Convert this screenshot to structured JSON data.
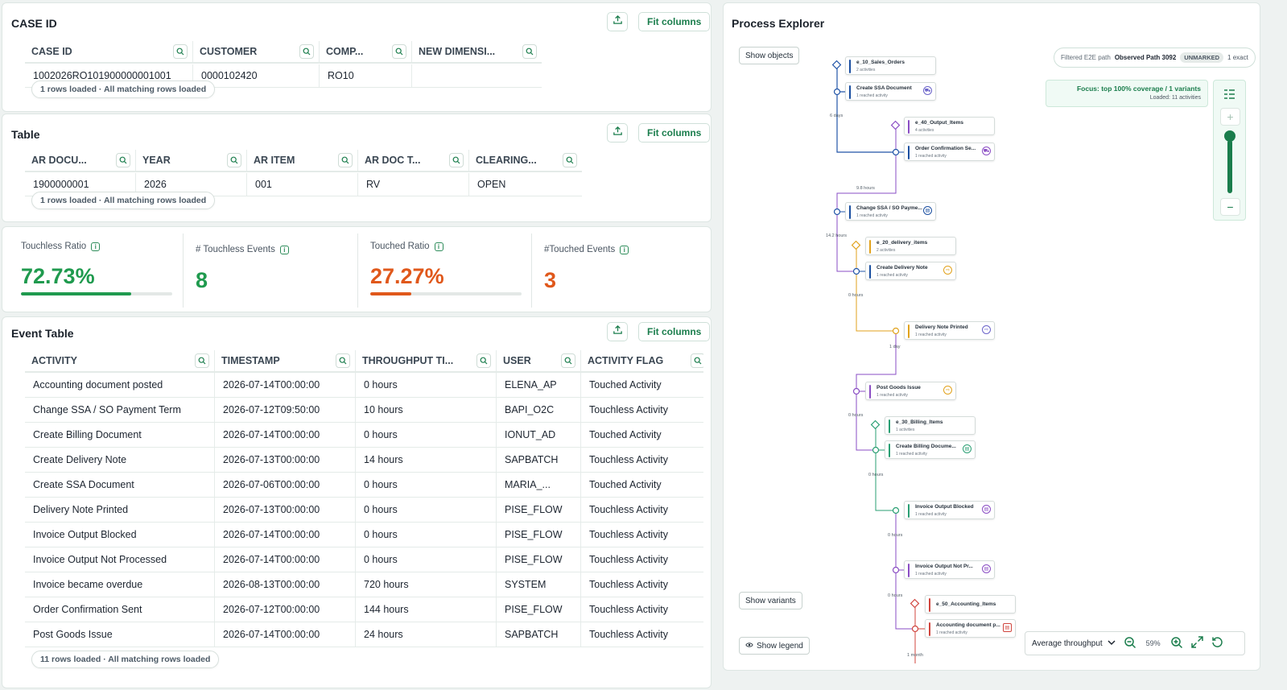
{
  "caseIdPanel": {
    "title": "CASE ID",
    "fitColumns": "Fit columns",
    "columns": [
      "CASE ID",
      "CUSTOMER",
      "COMP...",
      "NEW DIMENSI..."
    ],
    "rows": [
      [
        "1002026RO101900000001001",
        "0000102420",
        "RO10",
        ""
      ]
    ],
    "status": "1 rows loaded · All matching rows loaded"
  },
  "tablePanel": {
    "title": "Table",
    "fitColumns": "Fit columns",
    "columns": [
      "AR DOCU...",
      "YEAR",
      "AR ITEM",
      "AR DOC T...",
      "CLEARING..."
    ],
    "rows": [
      [
        "1900000001",
        "2026",
        "001",
        "RV",
        "OPEN"
      ]
    ],
    "status": "1 rows loaded · All matching rows loaded"
  },
  "kpis": [
    {
      "label": "Touchless Ratio",
      "value": "72.73%",
      "color": "#1f9a4e",
      "progress": 0.7273
    },
    {
      "label": "# Touchless Events",
      "value": "8",
      "color": "#1f9a4e"
    },
    {
      "label": "Touched Ratio",
      "value": "27.27%",
      "color": "#e0581b",
      "progress": 0.2727
    },
    {
      "label": "#Touched Events",
      "value": "3",
      "color": "#e0581b"
    }
  ],
  "eventTable": {
    "title": "Event Table",
    "fitColumns": "Fit columns",
    "columns": [
      "ACTIVITY",
      "TIMESTAMP",
      "THROUGHPUT TI...",
      "USER",
      "ACTIVITY FLAG"
    ],
    "rows": [
      [
        "Accounting document posted",
        "2026-07-14T00:00:00",
        "0 hours",
        "ELENA_AP",
        "Touched Activity"
      ],
      [
        "Change SSA / SO Payment Term",
        "2026-07-12T09:50:00",
        "10 hours",
        "BAPI_O2C",
        "Touchless Activity"
      ],
      [
        "Create Billing Document",
        "2026-07-14T00:00:00",
        "0 hours",
        "IONUT_AD",
        "Touched Activity"
      ],
      [
        "Create Delivery Note",
        "2026-07-13T00:00:00",
        "14 hours",
        "SAPBATCH",
        "Touchless Activity"
      ],
      [
        "Create SSA Document",
        "2026-07-06T00:00:00",
        "0 hours",
        "MARIA_...",
        "Touched Activity"
      ],
      [
        "Delivery Note Printed",
        "2026-07-13T00:00:00",
        "0 hours",
        "PISE_FLOW",
        "Touchless Activity"
      ],
      [
        "Invoice Output Blocked",
        "2026-07-14T00:00:00",
        "0 hours",
        "PISE_FLOW",
        "Touchless Activity"
      ],
      [
        "Invoice Output Not Processed",
        "2026-07-14T00:00:00",
        "0 hours",
        "PISE_FLOW",
        "Touchless Activity"
      ],
      [
        "Invoice became overdue",
        "2026-08-13T00:00:00",
        "720 hours",
        "SYSTEM",
        "Touchless Activity"
      ],
      [
        "Order Confirmation Sent",
        "2026-07-12T00:00:00",
        "144 hours",
        "PISE_FLOW",
        "Touchless Activity"
      ],
      [
        "Post Goods Issue",
        "2026-07-14T00:00:00",
        "24 hours",
        "SAPBATCH",
        "Touchless Activity"
      ]
    ],
    "status": "11 rows loaded · All matching rows loaded"
  },
  "processExplorer": {
    "title": "Process Explorer",
    "showObjects": "Show objects",
    "showVariants": "Show variants",
    "showLegend": "Show legend",
    "pathFilter": {
      "prefix": "Filtered E2E path",
      "name": "Observed Path 3092",
      "badge": "UNMARKED",
      "suffix": "1 exact"
    },
    "focus": {
      "title": "Focus: top 100% coverage / 1 variants",
      "loaded": "Loaded: 11 activities"
    },
    "zoomSlider": 0.85,
    "metric": "Average throughput",
    "zoomLevel": "59%",
    "nodes": [
      {
        "title": "e_10_Sales_Orders",
        "sub": "2 activities",
        "color": "#1a4fa0"
      },
      {
        "title": "Create SSA Document",
        "sub": "1 reached activity",
        "color": "#1a4fa0",
        "icon": "cart-icon"
      },
      {
        "title": "e_40_Output_Items",
        "sub": "4 activities",
        "color": "#8a4dc4"
      },
      {
        "title": "Order Confirmation Se...",
        "sub": "1 reached activity",
        "color": "#1a4fa0",
        "icon": "cart-icon"
      },
      {
        "title": "Change SSA / SO Payme...",
        "sub": "1 reached activity",
        "color": "#1a4fa0",
        "icon": "doc-icon"
      },
      {
        "title": "e_20_delivery_items",
        "sub": "2 activities",
        "color": "#e1a21c"
      },
      {
        "title": "Create Delivery Note",
        "sub": "1 reached activity",
        "color": "#1a4fa0",
        "icon": "truck-icon"
      },
      {
        "title": "Delivery Note Printed",
        "sub": "1 reached activity",
        "color": "#e1a21c",
        "icon": "printer-icon"
      },
      {
        "title": "Post Goods Issue",
        "sub": "1 reached activity",
        "color": "#8a4dc4",
        "icon": "truck-icon"
      },
      {
        "title": "e_30_Billing_Items",
        "sub": "1 activities",
        "color": "#2a9f73"
      },
      {
        "title": "Create Billing Docume...",
        "sub": "1 reached activity",
        "color": "#2a9f73",
        "icon": "doc-icon"
      },
      {
        "title": "Invoice Output Blocked",
        "sub": "1 reached activity",
        "color": "#2a9f73",
        "icon": "doc-icon"
      },
      {
        "title": "Invoice Output Not Pr...",
        "sub": "1 reached activity",
        "color": "#8a4dc4",
        "icon": "doc-icon"
      },
      {
        "title": "e_50_Accounting_Items",
        "sub": "",
        "color": "#d0453e"
      },
      {
        "title": "Accounting document p...",
        "sub": "1 reached activity",
        "color": "#d0453e",
        "icon": "doc-icon"
      }
    ],
    "edgeLabels": [
      "6 days",
      "9.8 hours",
      "14.2 hours",
      "0 hours",
      "1 day",
      "0 hours",
      "0 hours",
      "0 hours",
      "0 hours",
      "1 month"
    ]
  }
}
